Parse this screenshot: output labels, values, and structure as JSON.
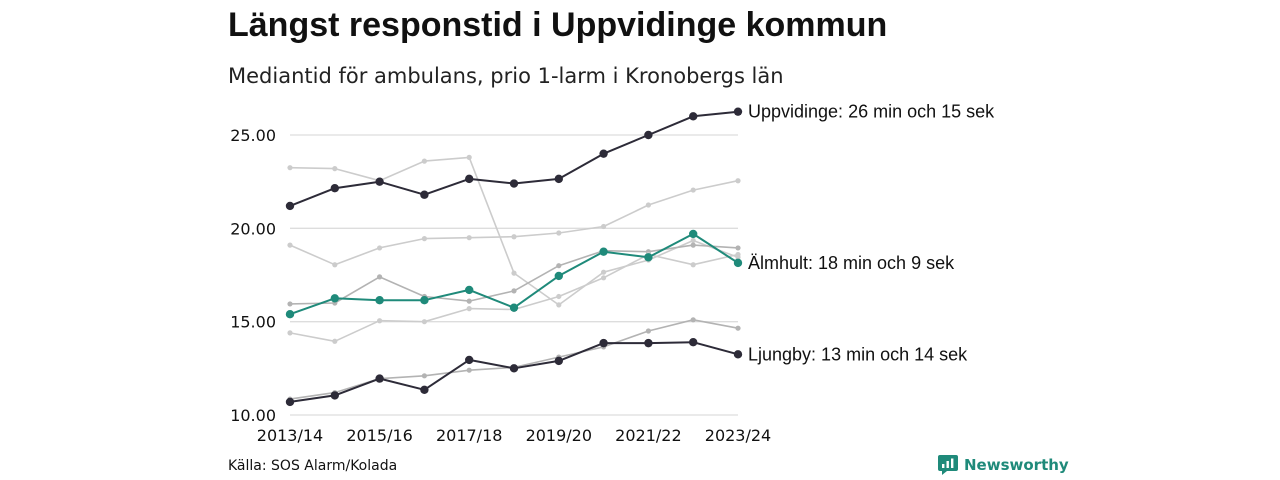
{
  "title": "Längst responstid i Uppvidinge kommun",
  "subtitle": "Mediantid för ambulans, prio 1-larm i Kronobergs län",
  "source": "Källa: SOS Alarm/Kolada",
  "brand": {
    "name": "Newsworthy",
    "icon": "newsworthy-logo-icon",
    "color": "#1f8a7a"
  },
  "chart_data": {
    "type": "line",
    "x": [
      "2013/14",
      "2014/15",
      "2015/16",
      "2016/17",
      "2017/18",
      "2018/19",
      "2019/20",
      "2020/21",
      "2021/22",
      "2022/23",
      "2023/24"
    ],
    "x_tick_labels": [
      "2013/14",
      "2015/16",
      "2017/18",
      "2019/20",
      "2021/22",
      "2023/24"
    ],
    "ylim": [
      10,
      26.5
    ],
    "y_ticks": [
      10,
      15,
      20,
      25
    ],
    "y_tick_labels": [
      "10.00",
      "15.00",
      "20.00",
      "25.00"
    ],
    "grid": "horizontal",
    "series": [
      {
        "values": [
          23.25,
          23.2,
          22.55,
          23.6,
          23.8,
          17.6,
          15.9,
          17.65,
          18.3,
          19.35,
          18.45
        ],
        "color": "#cccccc",
        "highlight": false
      },
      {
        "values": [
          19.1,
          18.05,
          18.95,
          19.45,
          19.5,
          19.55,
          19.75,
          20.1,
          21.25,
          22.05,
          22.55
        ],
        "color": "#cccccc",
        "highlight": false
      },
      {
        "values": [
          15.95,
          16.0,
          17.4,
          16.35,
          16.1,
          16.65,
          18.0,
          18.8,
          18.75,
          19.1,
          18.95
        ],
        "color": "#b3b3b3",
        "highlight": false
      },
      {
        "values": [
          14.4,
          13.95,
          15.05,
          15.0,
          15.7,
          15.65,
          16.35,
          17.35,
          18.6,
          18.05,
          18.6
        ],
        "color": "#cccccc",
        "highlight": false
      },
      {
        "values": [
          10.85,
          11.2,
          11.95,
          12.1,
          12.4,
          12.55,
          13.1,
          13.65,
          14.5,
          15.1,
          14.65
        ],
        "color": "#b3b3b3",
        "highlight": false
      },
      {
        "name": "Uppvidinge",
        "label": "Uppvidinge: 26 min och 15 sek",
        "values": [
          21.2,
          22.15,
          22.5,
          21.8,
          22.65,
          22.4,
          22.65,
          24.0,
          25.0,
          26.0,
          26.25
        ],
        "color": "#2d2b38",
        "highlight": true
      },
      {
        "name": "Älmhult",
        "label": "Älmhult: 18 min och 9 sek",
        "values": [
          15.4,
          16.25,
          16.15,
          16.15,
          16.7,
          15.75,
          17.45,
          18.75,
          18.45,
          19.7,
          18.15
        ],
        "color": "#1f8a7a",
        "highlight": true
      },
      {
        "name": "Ljungby",
        "label": "Ljungby: 13 min och 14 sek",
        "values": [
          10.7,
          11.05,
          11.95,
          11.35,
          12.95,
          12.5,
          12.9,
          13.85,
          13.85,
          13.9,
          13.25
        ],
        "color": "#2d2b38",
        "highlight": true
      }
    ]
  }
}
